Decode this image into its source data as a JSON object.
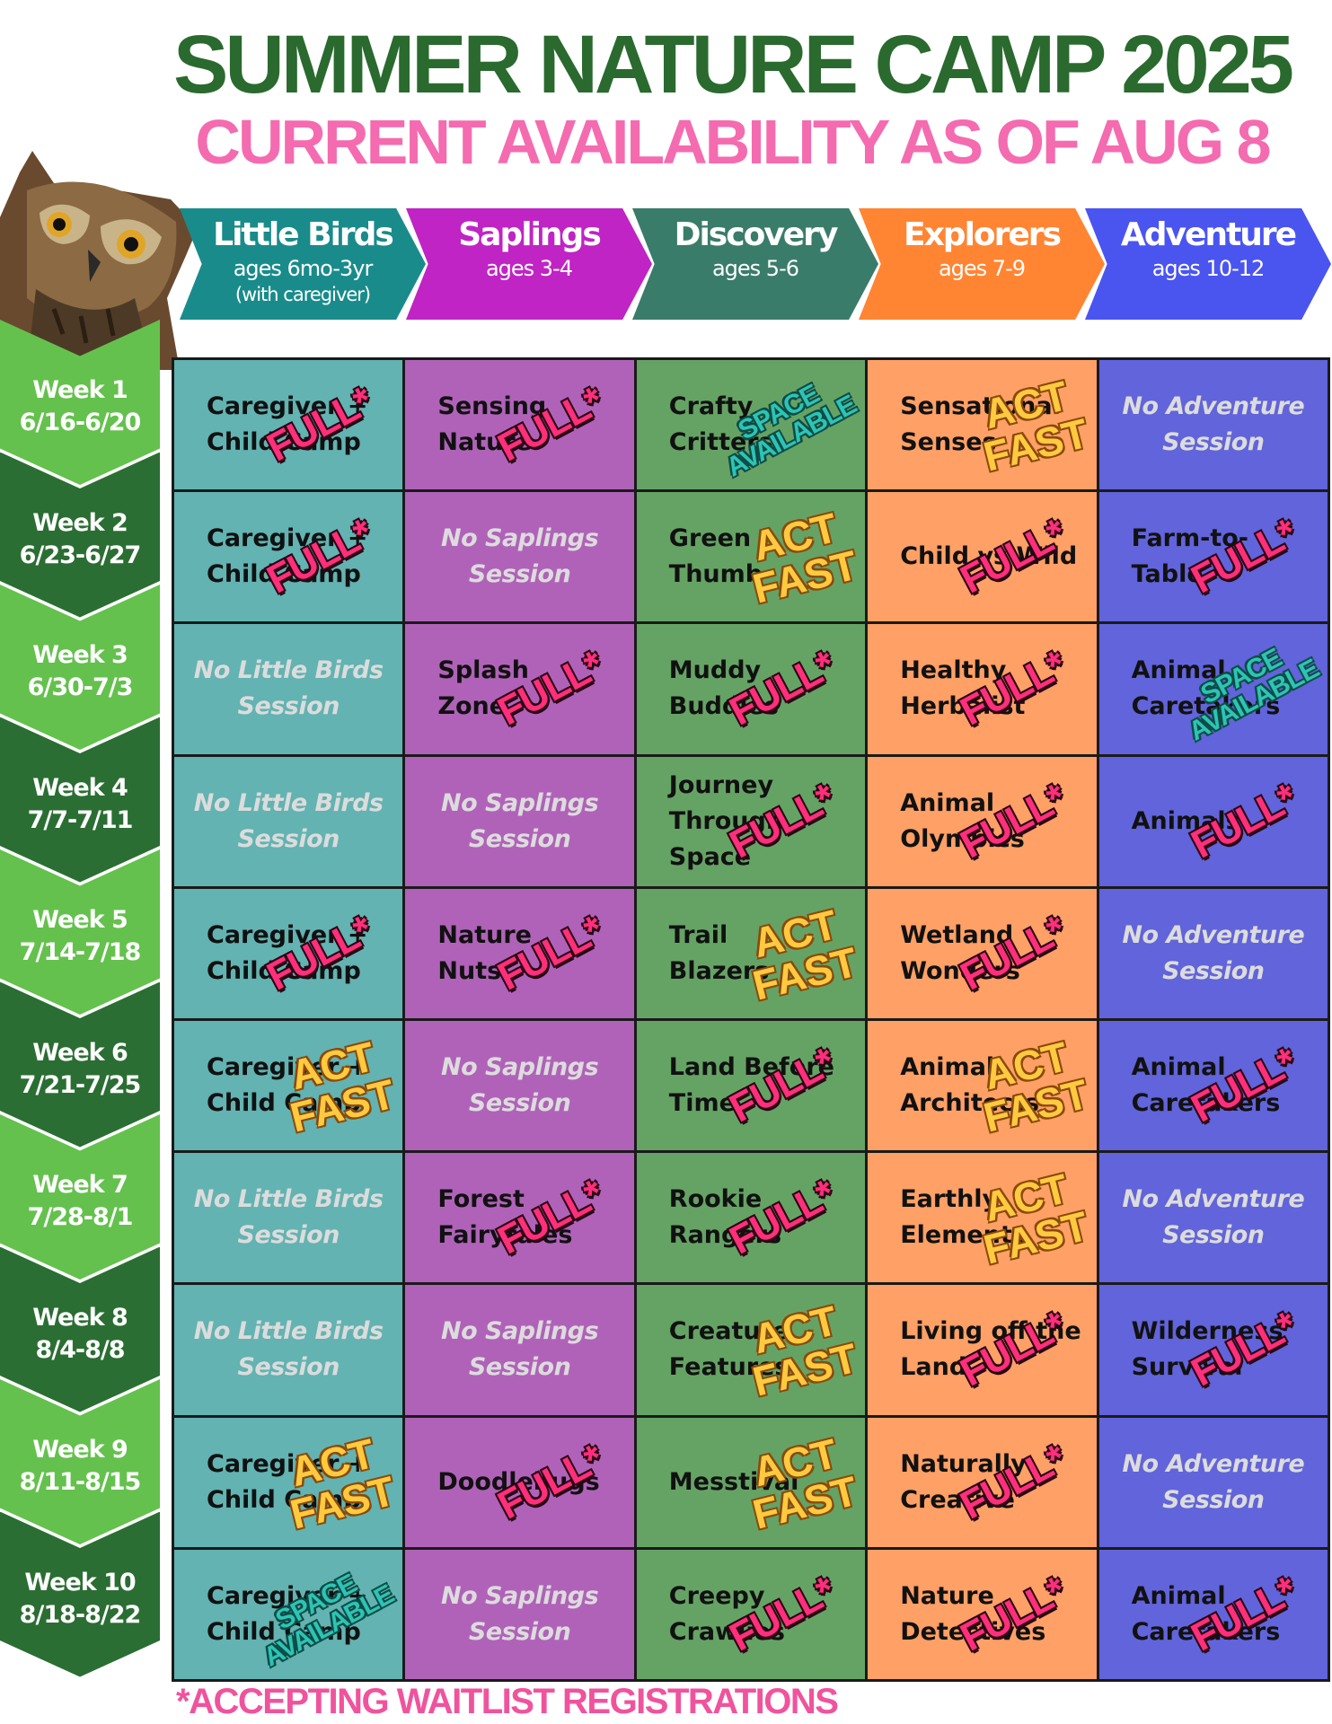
{
  "title": "SUMMER NATURE CAMP 2025",
  "subtitle": "CURRENT AVAILABILITY AS OF AUG 8",
  "colors": {
    "title": "#2a6a2e",
    "subtitle": "#f46bb0",
    "full_stamp": "#ff2f7a",
    "act_fast_stamp": "#ffc940",
    "space_available_stamp": "#2cc4b5",
    "week_light": "#64c14d",
    "week_dark": "#2b6e33"
  },
  "programs": [
    {
      "name": "Little Birds",
      "ages": "ages 6mo-3yr",
      "note": "(with caregiver)",
      "color": "#1a8b8b"
    },
    {
      "name": "Saplings",
      "ages": "ages 3-4",
      "note": "",
      "color": "#c024c4"
    },
    {
      "name": "Discovery",
      "ages": "ages 5-6",
      "note": "",
      "color": "#3a7c6a"
    },
    {
      "name": "Explorers",
      "ages": "ages 7-9",
      "note": "",
      "color": "#ff8533"
    },
    {
      "name": "Adventure",
      "ages": "ages 10-12",
      "note": "",
      "color": "#4a55f0"
    }
  ],
  "weeks": [
    {
      "label": "Week 1",
      "dates": "6/16-6/20"
    },
    {
      "label": "Week 2",
      "dates": "6/23-6/27"
    },
    {
      "label": "Week 3",
      "dates": "6/30-7/3"
    },
    {
      "label": "Week 4",
      "dates": "7/7-7/11"
    },
    {
      "label": "Week 5",
      "dates": "7/14-7/18"
    },
    {
      "label": "Week 6",
      "dates": "7/21-7/25"
    },
    {
      "label": "Week 7",
      "dates": "7/28-8/1"
    },
    {
      "label": "Week 8",
      "dates": "8/4-8/8"
    },
    {
      "label": "Week 9",
      "dates": "8/11-8/15"
    },
    {
      "label": "Week 10",
      "dates": "8/18-8/22"
    }
  ],
  "status_labels": {
    "full": "FULL*",
    "act": "ACT\nFAST",
    "space": "SPACE\nAVAILABLE"
  },
  "schedule": [
    [
      {
        "text": "Caregiver +\nChild Camp",
        "status": "full"
      },
      {
        "text": "Sensing\nNature",
        "status": "full"
      },
      {
        "text": "Crafty\nCritters",
        "status": "space"
      },
      {
        "text": "Sensational\nSenses",
        "status": "act"
      },
      {
        "text": "No Adventure\nSession",
        "status": "none"
      }
    ],
    [
      {
        "text": "Caregiver +\nChild Camp",
        "status": "full"
      },
      {
        "text": "No Saplings\nSession",
        "status": "none"
      },
      {
        "text": "Green\nThumb",
        "status": "act"
      },
      {
        "text": "Child vs Wild",
        "status": "full"
      },
      {
        "text": "Farm-to-\nTable",
        "status": "full"
      }
    ],
    [
      {
        "text": "No Little Birds\nSession",
        "status": "none"
      },
      {
        "text": "Splash\nZone",
        "status": "full"
      },
      {
        "text": "Muddy\nBuddies",
        "status": "full"
      },
      {
        "text": "Healthy\nHerbalist",
        "status": "full"
      },
      {
        "text": "Animal\nCaretakers",
        "status": "space"
      }
    ],
    [
      {
        "text": "No Little Birds\nSession",
        "status": "none"
      },
      {
        "text": "No Saplings\nSession",
        "status": "none"
      },
      {
        "text": "Journey\nThrough Space",
        "status": "full"
      },
      {
        "text": "Animal\nOlympics",
        "status": "full"
      },
      {
        "text": "Animals",
        "status": "full"
      }
    ],
    [
      {
        "text": "Caregiver +\nChild Camp",
        "status": "full"
      },
      {
        "text": "Nature\nNuts",
        "status": "full"
      },
      {
        "text": "Trail\nBlazers",
        "status": "act"
      },
      {
        "text": "Wetland\nWonders",
        "status": "full"
      },
      {
        "text": "No Adventure\nSession",
        "status": "none"
      }
    ],
    [
      {
        "text": "Caregiver +\nChild Camp",
        "status": "act"
      },
      {
        "text": "No Saplings\nSession",
        "status": "none"
      },
      {
        "text": "Land Before\nTime",
        "status": "full"
      },
      {
        "text": "Animal\nArchitects",
        "status": "act"
      },
      {
        "text": "Animal\nCaretakers",
        "status": "full"
      }
    ],
    [
      {
        "text": "No Little Birds\nSession",
        "status": "none"
      },
      {
        "text": "Forest\nFairytales",
        "status": "full"
      },
      {
        "text": "Rookie\nRangers",
        "status": "full"
      },
      {
        "text": "Earthly\nElements",
        "status": "act"
      },
      {
        "text": "No Adventure\nSession",
        "status": "none"
      }
    ],
    [
      {
        "text": "No Little Birds\nSession",
        "status": "none"
      },
      {
        "text": "No Saplings\nSession",
        "status": "none"
      },
      {
        "text": "Creature\nFeatures",
        "status": "act"
      },
      {
        "text": "Living off the\nLand",
        "status": "full"
      },
      {
        "text": "Wilderness\nSurvival",
        "status": "full"
      }
    ],
    [
      {
        "text": "Caregiver +\nChild Camp",
        "status": "act"
      },
      {
        "text": "Doodlebugs",
        "status": "full"
      },
      {
        "text": "Messtival",
        "status": "act"
      },
      {
        "text": "Naturally\nCreative",
        "status": "full"
      },
      {
        "text": "No Adventure\nSession",
        "status": "none"
      }
    ],
    [
      {
        "text": "Caregiver +\nChild Camp",
        "status": "space"
      },
      {
        "text": "No Saplings\nSession",
        "status": "none"
      },
      {
        "text": "Creepy\nCrawlies",
        "status": "full"
      },
      {
        "text": "Nature\nDetectives",
        "status": "full"
      },
      {
        "text": "Animal\nCaretakers",
        "status": "full"
      }
    ]
  ],
  "footer": "*ACCEPTING WAITLIST REGISTRATIONS"
}
